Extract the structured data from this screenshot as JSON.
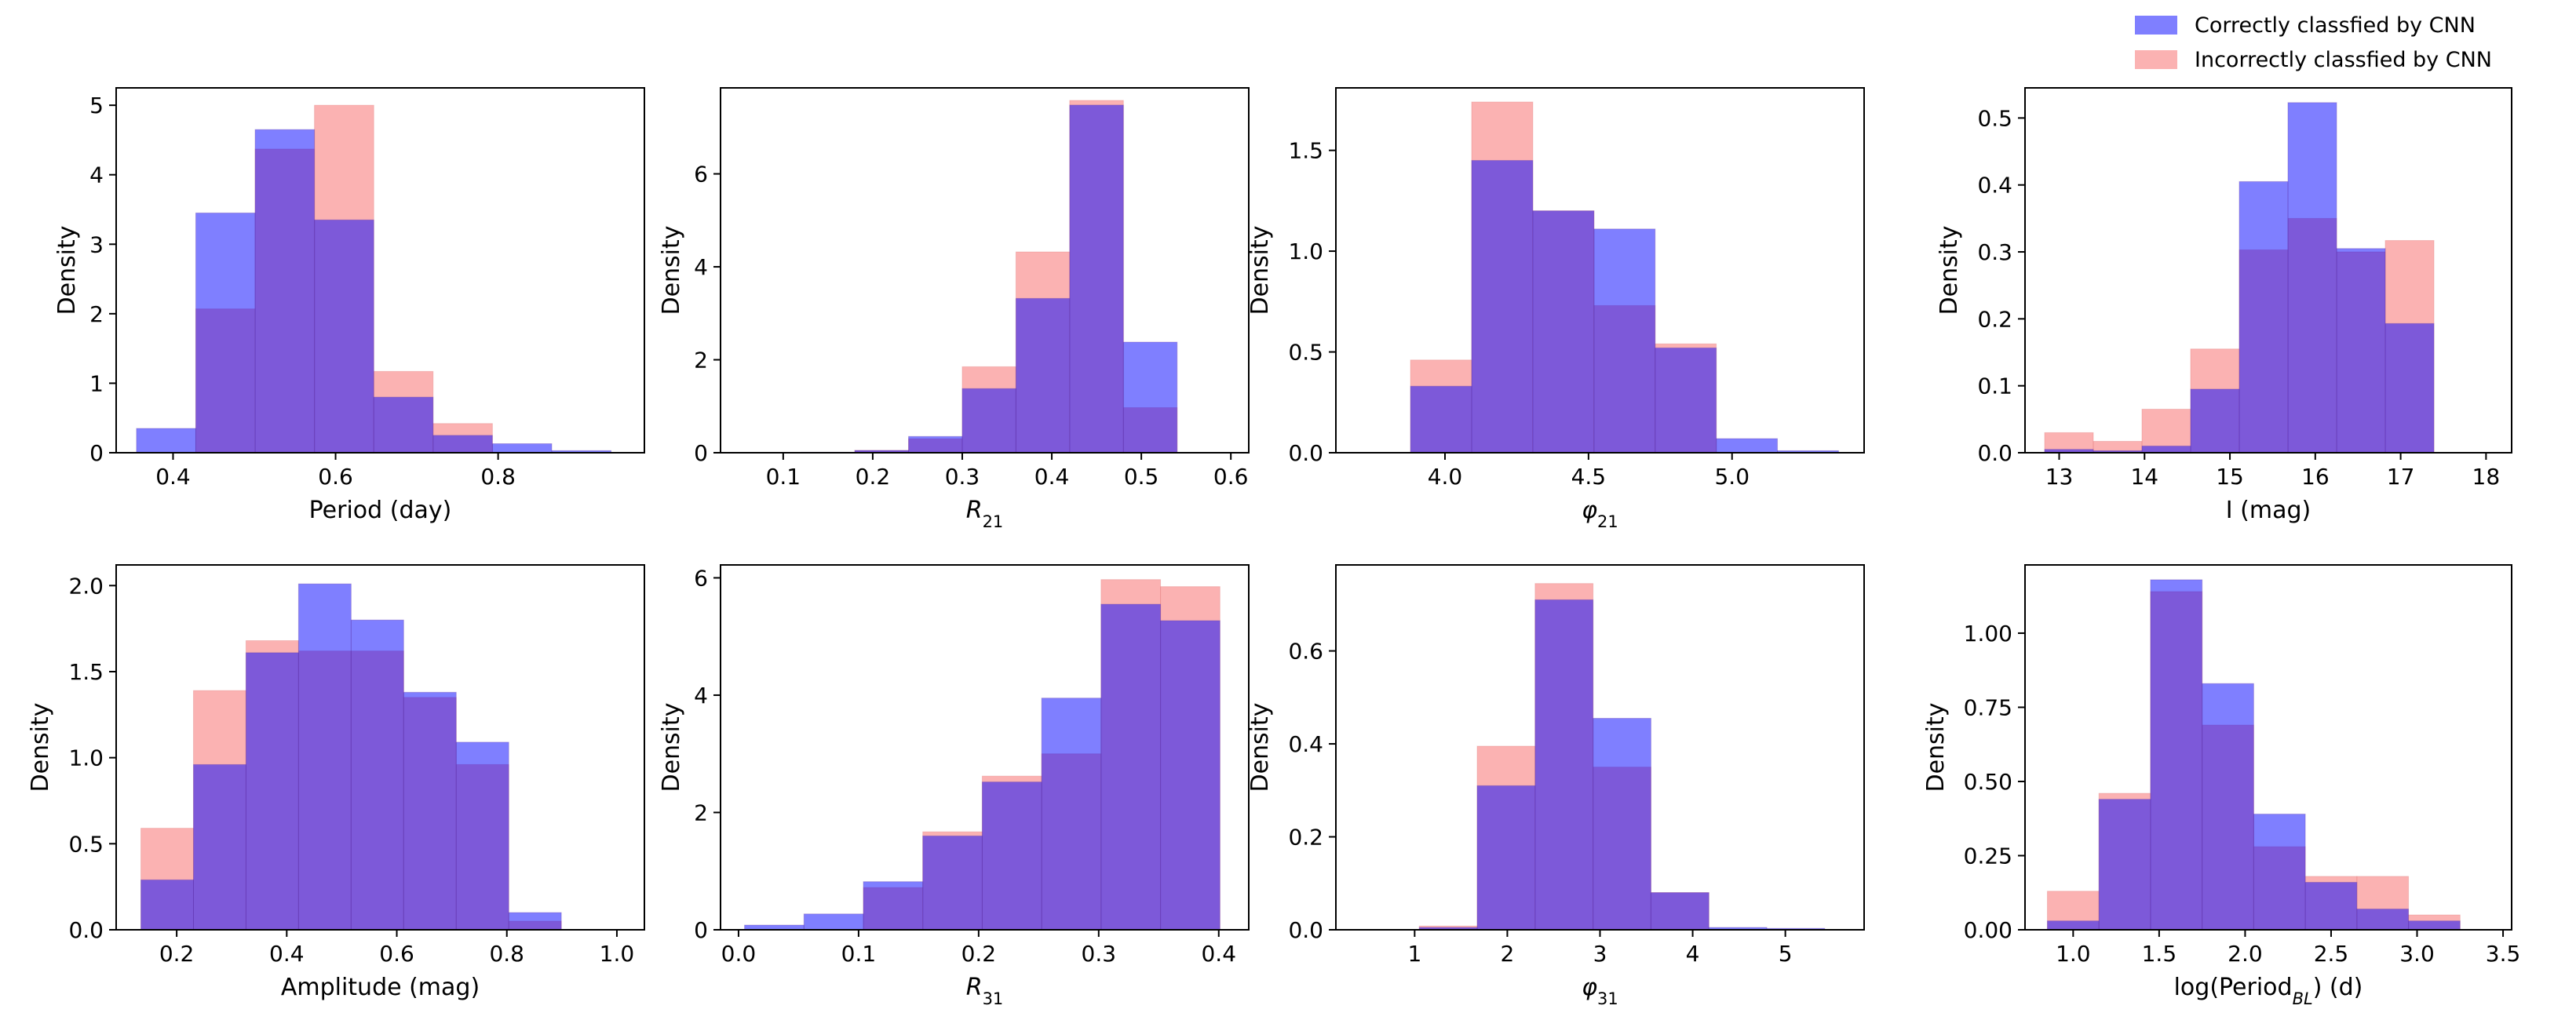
{
  "legend": {
    "correct": "Correctly classfied by CNN",
    "incorrect": "Incorrectly classfied by CNN"
  },
  "colors": {
    "correct": "#0000ff",
    "incorrect": "#f97f7f",
    "overlap": "#a653ad"
  },
  "chart_data": [
    {
      "type": "histogram",
      "title": "",
      "xlabel": "Period (day)",
      "ylabel": "Density",
      "xlim": [
        0.33,
        0.98
      ],
      "ylim": [
        0,
        5.25
      ],
      "xticks": [
        0.4,
        0.6,
        0.8
      ],
      "xticklabels": [
        "0.4",
        "0.6",
        "0.8"
      ],
      "yticks": [
        0,
        1,
        2,
        3,
        4,
        5
      ],
      "yticklabels": [
        "0",
        "1",
        "2",
        "3",
        "4",
        "5"
      ],
      "series": [
        {
          "name": "Correctly classfied by CNN",
          "bins": [
            0.355,
            0.428,
            0.501,
            0.574,
            0.647,
            0.72,
            0.793,
            0.866,
            0.939
          ],
          "values": [
            0.35,
            3.45,
            4.65,
            3.35,
            0.8,
            0.25,
            0.13,
            0.03
          ]
        },
        {
          "name": "Incorrectly classfied by CNN",
          "bins": [
            0.428,
            0.501,
            0.574,
            0.647,
            0.72,
            0.793
          ],
          "values": [
            2.07,
            4.37,
            5.0,
            1.17,
            0.42
          ]
        }
      ]
    },
    {
      "type": "histogram",
      "title": "",
      "xlabel": "R_21",
      "ylabel": "Density",
      "xlim": [
        0.03,
        0.62
      ],
      "ylim": [
        0,
        7.85
      ],
      "xticks": [
        0.1,
        0.2,
        0.3,
        0.4,
        0.5,
        0.6
      ],
      "xticklabels": [
        "0.1",
        "0.2",
        "0.3",
        "0.4",
        "0.5",
        "0.6"
      ],
      "yticks": [
        0,
        2,
        4,
        6
      ],
      "yticklabels": [
        "0",
        "2",
        "4",
        "6"
      ],
      "series": [
        {
          "name": "Correctly classfied by CNN",
          "bins": [
            0.06,
            0.12,
            0.18,
            0.24,
            0.3,
            0.36,
            0.42,
            0.48,
            0.54,
            0.6
          ],
          "values": [
            0.0,
            0.01,
            0.05,
            0.35,
            1.38,
            3.32,
            7.48,
            2.38,
            0.0
          ]
        },
        {
          "name": "Incorrectly classfied by CNN",
          "bins": [
            0.18,
            0.24,
            0.3,
            0.36,
            0.42,
            0.48,
            0.54,
            0.6
          ],
          "values": [
            0.05,
            0.3,
            1.85,
            4.32,
            7.58,
            0.97,
            0.0
          ]
        }
      ]
    },
    {
      "type": "histogram",
      "title": "",
      "xlabel": "φ_21",
      "ylabel": "Density",
      "xlim": [
        3.62,
        5.46
      ],
      "ylim": [
        0,
        1.81
      ],
      "xticks": [
        4.0,
        4.5,
        5.0
      ],
      "xticklabels": [
        "4.0",
        "4.5",
        "5.0"
      ],
      "yticks": [
        0.0,
        0.5,
        1.0,
        1.5
      ],
      "yticklabels": [
        "0.0",
        "0.5",
        "1.0",
        "1.5"
      ],
      "series": [
        {
          "name": "Correctly classfied by CNN",
          "bins": [
            3.88,
            4.093,
            4.306,
            4.519,
            4.732,
            4.945,
            5.158,
            5.371
          ],
          "values": [
            0.33,
            1.45,
            1.2,
            1.11,
            0.52,
            0.07,
            0.01
          ]
        },
        {
          "name": "Incorrectly classfied by CNN",
          "bins": [
            3.88,
            4.093,
            4.306,
            4.519,
            4.732,
            4.945
          ],
          "values": [
            0.46,
            1.74,
            1.2,
            0.73,
            0.54
          ]
        }
      ]
    },
    {
      "type": "histogram",
      "title": "",
      "xlabel": "I (mag)",
      "ylabel": "Density",
      "xlim": [
        12.6,
        18.3
      ],
      "ylim": [
        0,
        0.545
      ],
      "xticks": [
        13,
        14,
        15,
        16,
        17,
        18
      ],
      "xticklabels": [
        "13",
        "14",
        "15",
        "16",
        "17",
        "18"
      ],
      "yticks": [
        0.0,
        0.1,
        0.2,
        0.3,
        0.4,
        0.5
      ],
      "yticklabels": [
        "0.0",
        "0.1",
        "0.2",
        "0.3",
        "0.4",
        "0.5"
      ],
      "series": [
        {
          "name": "Correctly classfied by CNN",
          "bins": [
            12.83,
            13.4,
            13.97,
            14.54,
            15.11,
            15.68,
            16.25,
            16.82,
            17.39,
            17.96
          ],
          "values": [
            0.005,
            0.003,
            0.01,
            0.095,
            0.405,
            0.523,
            0.305,
            0.193,
            0.0
          ]
        },
        {
          "name": "Incorrectly classfied by CNN",
          "bins": [
            12.83,
            13.4,
            13.97,
            14.54,
            15.11,
            15.68,
            16.25,
            16.82,
            17.39,
            17.96
          ],
          "values": [
            0.03,
            0.017,
            0.065,
            0.155,
            0.303,
            0.35,
            0.3,
            0.317,
            0.0
          ]
        }
      ]
    },
    {
      "type": "histogram",
      "title": "",
      "xlabel": "Amplitude (mag)",
      "ylabel": "Density",
      "xlim": [
        0.09,
        1.05
      ],
      "ylim": [
        0,
        2.12
      ],
      "xticks": [
        0.2,
        0.4,
        0.6,
        0.8,
        1.0
      ],
      "xticklabels": [
        "0.2",
        "0.4",
        "0.6",
        "0.8",
        "1.0"
      ],
      "yticks": [
        0.0,
        0.5,
        1.0,
        1.5,
        2.0
      ],
      "yticklabels": [
        "0.0",
        "0.5",
        "1.0",
        "1.5",
        "2.0"
      ],
      "series": [
        {
          "name": "Correctly classfied by CNN",
          "bins": [
            0.135,
            0.2305,
            0.326,
            0.4215,
            0.517,
            0.6125,
            0.708,
            0.8035,
            0.899,
            0.9945
          ],
          "values": [
            0.29,
            0.96,
            1.61,
            2.01,
            1.8,
            1.38,
            1.09,
            0.1,
            0.0
          ]
        },
        {
          "name": "Incorrectly classfied by CNN",
          "bins": [
            0.135,
            0.2305,
            0.326,
            0.4215,
            0.517,
            0.6125,
            0.708,
            0.8035,
            0.899,
            0.9945
          ],
          "values": [
            0.59,
            1.39,
            1.68,
            1.62,
            1.62,
            1.35,
            0.96,
            0.05,
            0.0
          ]
        }
      ]
    },
    {
      "type": "histogram",
      "title": "",
      "xlabel": "R_31",
      "ylabel": "Density",
      "xlim": [
        -0.015,
        0.425
      ],
      "ylim": [
        0,
        6.22
      ],
      "xticks": [
        0.0,
        0.1,
        0.2,
        0.3,
        0.4
      ],
      "xticklabels": [
        "0.0",
        "0.1",
        "0.2",
        "0.3",
        "0.4"
      ],
      "yticks": [
        0,
        2,
        4,
        6
      ],
      "yticklabels": [
        "0",
        "2",
        "4",
        "6"
      ],
      "series": [
        {
          "name": "Correctly classfied by CNN",
          "bins": [
            0.005,
            0.0545,
            0.104,
            0.1535,
            0.203,
            0.2525,
            0.302,
            0.3515,
            0.401
          ],
          "values": [
            0.08,
            0.27,
            0.82,
            1.6,
            2.52,
            3.95,
            5.55,
            5.27
          ]
        },
        {
          "name": "Incorrectly classfied by CNN",
          "bins": [
            0.005,
            0.0545,
            0.104,
            0.1535,
            0.203,
            0.2525,
            0.302,
            0.3515,
            0.401
          ],
          "values": [
            0.0,
            0.0,
            0.72,
            1.67,
            2.62,
            3.0,
            5.97,
            5.85
          ]
        }
      ]
    },
    {
      "type": "histogram",
      "title": "",
      "xlabel": "φ_31",
      "ylabel": "Density",
      "xlim": [
        0.15,
        5.85
      ],
      "ylim": [
        0,
        0.785
      ],
      "xticks": [
        1,
        2,
        3,
        4,
        5
      ],
      "xticklabels": [
        "1",
        "2",
        "3",
        "4",
        "5"
      ],
      "yticks": [
        0.0,
        0.2,
        0.4,
        0.6
      ],
      "yticklabels": [
        "0.0",
        "0.2",
        "0.4",
        "0.6"
      ],
      "series": [
        {
          "name": "Correctly classfied by CNN",
          "bins": [
            1.05,
            1.675,
            2.3,
            2.925,
            3.55,
            4.175,
            4.8,
            5.425
          ],
          "values": [
            0.005,
            0.31,
            0.71,
            0.455,
            0.08,
            0.005,
            0.003
          ]
        },
        {
          "name": "Incorrectly classfied by CNN",
          "bins": [
            1.05,
            1.675,
            2.3,
            2.925,
            3.55,
            4.175
          ],
          "values": [
            0.008,
            0.395,
            0.745,
            0.35,
            0.08
          ]
        }
      ]
    },
    {
      "type": "histogram",
      "title": "",
      "xlabel": "log(Period_BL) (d)",
      "ylabel": "Density",
      "xlim": [
        0.72,
        3.55
      ],
      "ylim": [
        0,
        1.23
      ],
      "xticks": [
        1.0,
        1.5,
        2.0,
        2.5,
        3.0,
        3.5
      ],
      "xticklabels": [
        "1.0",
        "1.5",
        "2.0",
        "2.5",
        "3.0",
        "3.5"
      ],
      "yticks": [
        0.0,
        0.25,
        0.5,
        0.75,
        1.0
      ],
      "yticklabels": [
        "0.00",
        "0.25",
        "0.50",
        "0.75",
        "1.00"
      ],
      "series": [
        {
          "name": "Correctly classfied by CNN",
          "bins": [
            0.85,
            1.15,
            1.45,
            1.75,
            2.05,
            2.35,
            2.65,
            2.95,
            3.25
          ],
          "values": [
            0.03,
            0.44,
            1.18,
            0.83,
            0.39,
            0.16,
            0.07,
            0.03
          ]
        },
        {
          "name": "Incorrectly classfied by CNN",
          "bins": [
            0.85,
            1.15,
            1.45,
            1.75,
            2.05,
            2.35,
            2.65,
            2.95,
            3.25
          ],
          "values": [
            0.13,
            0.46,
            1.14,
            0.69,
            0.28,
            0.18,
            0.18,
            0.05
          ]
        }
      ]
    }
  ]
}
